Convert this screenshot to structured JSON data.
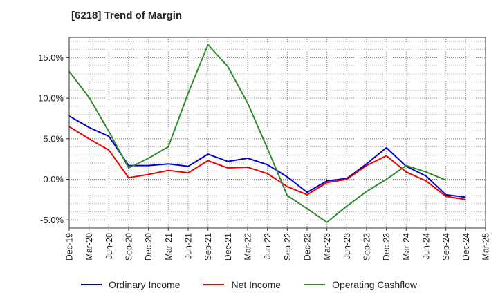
{
  "chart_data": {
    "type": "line",
    "title": "[6218]  Trend of Margin",
    "xlabel": "",
    "ylabel": "",
    "categories": [
      "Dec-19",
      "Mar-20",
      "Jun-20",
      "Sep-20",
      "Dec-20",
      "Mar-21",
      "Jun-21",
      "Sep-21",
      "Dec-21",
      "Mar-22",
      "Jun-22",
      "Sep-22",
      "Dec-22",
      "Mar-23",
      "Jun-23",
      "Sep-23",
      "Dec-23",
      "Mar-24",
      "Jun-24",
      "Sep-24",
      "Dec-24",
      "Mar-25"
    ],
    "ylim": [
      -6.0,
      17.5
    ],
    "yticks": [
      -5.0,
      0.0,
      5.0,
      10.0,
      15.0
    ],
    "ytick_labels": [
      "-5.0%",
      "0.0%",
      "5.0%",
      "10.0%",
      "15.0%"
    ],
    "grid": true,
    "legend_position": "bottom",
    "series": [
      {
        "name": "Ordinary Income",
        "color": "#0000cc",
        "values": [
          7.8,
          6.4,
          5.3,
          1.7,
          1.7,
          1.9,
          1.6,
          3.1,
          2.2,
          2.6,
          1.8,
          0.3,
          -1.6,
          -0.2,
          0.1,
          1.9,
          3.9,
          1.6,
          0.4,
          -1.9,
          -2.2,
          null
        ]
      },
      {
        "name": "Net Income",
        "color": "#ee0000",
        "values": [
          6.5,
          5.0,
          3.6,
          0.2,
          0.6,
          1.1,
          0.8,
          2.3,
          1.4,
          1.5,
          0.7,
          -0.9,
          -1.9,
          -0.4,
          0.0,
          1.7,
          2.9,
          0.9,
          -0.2,
          -2.1,
          -2.5,
          null
        ]
      },
      {
        "name": "Operating Cashflow",
        "color": "#2e8b2e",
        "values": [
          13.3,
          10.1,
          5.9,
          1.4,
          2.6,
          4.0,
          10.6,
          16.6,
          13.9,
          9.4,
          3.8,
          -2.0,
          -3.6,
          -5.3,
          -3.3,
          -1.5,
          0.0,
          1.7,
          0.9,
          -0.1,
          null,
          null
        ]
      }
    ]
  }
}
